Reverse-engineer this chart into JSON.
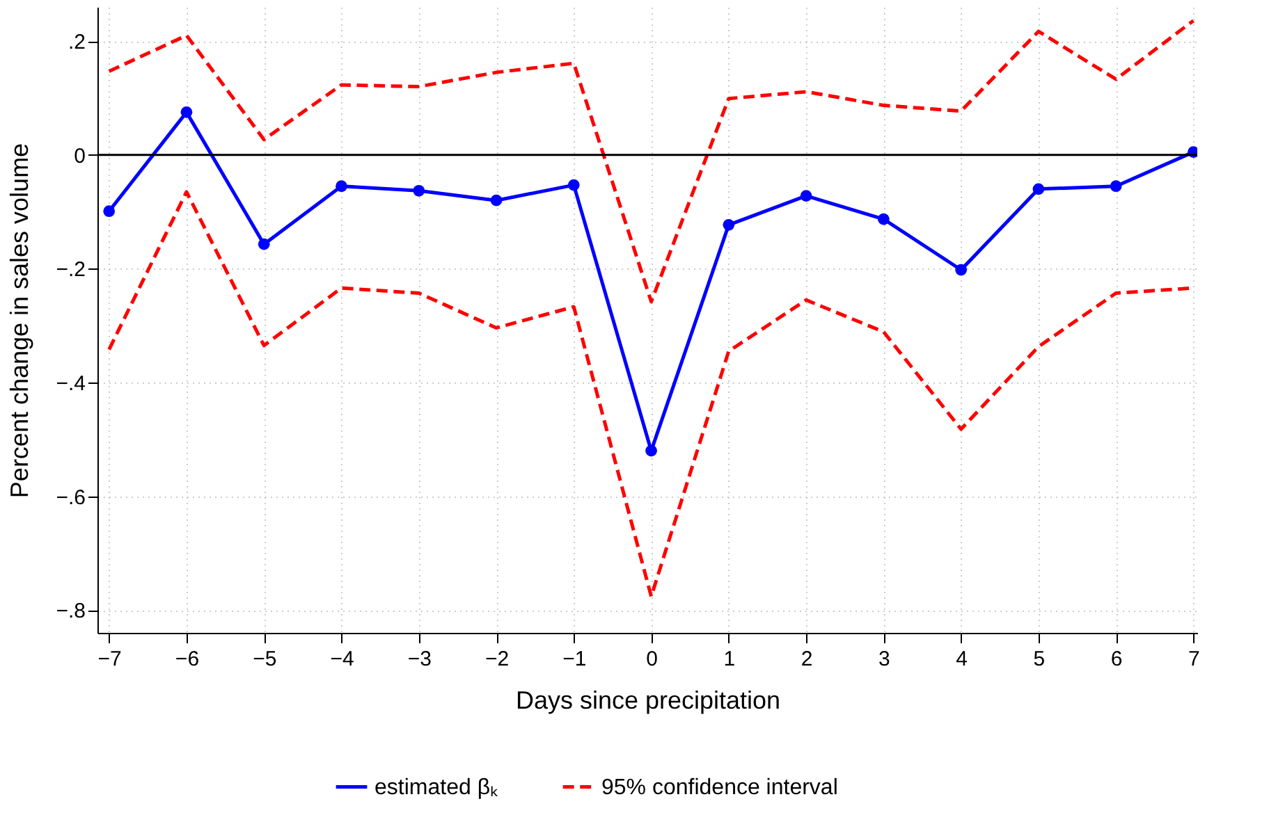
{
  "chart_data": {
    "type": "line",
    "xlabel": "Days since precipitation",
    "ylabel": "Percent change in sales volume",
    "x": [
      -7,
      -6,
      -5,
      -4,
      -3,
      -2,
      -1,
      0,
      1,
      2,
      3,
      4,
      5,
      6,
      7
    ],
    "series": [
      {
        "name": "estimated βₖ",
        "color": "#0000ff",
        "marker": "circle",
        "line_style": "solid",
        "values": [
          -0.099,
          0.075,
          -0.157,
          -0.055,
          -0.063,
          -0.08,
          -0.053,
          -0.52,
          -0.123,
          -0.072,
          -0.113,
          -0.202,
          -0.06,
          -0.055,
          0.005
        ]
      },
      {
        "name": "95% confidence interval",
        "color": "#ff0000",
        "marker": "none",
        "line_style": "dashed",
        "values": [
          0.147,
          0.21,
          0.027,
          0.123,
          0.12,
          0.145,
          0.161,
          -0.258,
          0.099,
          0.111,
          0.087,
          0.077,
          0.217,
          0.133,
          0.236
        ]
      },
      {
        "color": "#ff0000",
        "marker": "none",
        "line_style": "dashed",
        "values": [
          -0.342,
          -0.065,
          -0.335,
          -0.234,
          -0.243,
          -0.304,
          -0.267,
          -0.776,
          -0.345,
          -0.255,
          -0.311,
          -0.482,
          -0.337,
          -0.243,
          -0.234
        ]
      }
    ],
    "xlim": [
      -7.15,
      7.05
    ],
    "ylim": [
      -0.84,
      0.26
    ],
    "xticks": [
      {
        "value": -7,
        "label": "−7"
      },
      {
        "value": -6,
        "label": "−6"
      },
      {
        "value": -5,
        "label": "−5"
      },
      {
        "value": -4,
        "label": "−4"
      },
      {
        "value": -3,
        "label": "−3"
      },
      {
        "value": -2,
        "label": "−2"
      },
      {
        "value": -1,
        "label": "−1"
      },
      0,
      1,
      2,
      3,
      4,
      5,
      6,
      7
    ],
    "yticks": [
      {
        "value": -0.8,
        "label": "−.8"
      },
      {
        "value": -0.6,
        "label": "−.6"
      },
      {
        "value": -0.4,
        "label": "−.4"
      },
      {
        "value": -0.2,
        "label": "−.2"
      },
      0,
      {
        "value": 0.2,
        "label": ".2"
      }
    ],
    "ref_lines": [
      {
        "axis": "y",
        "value": 0,
        "color": "#000000"
      }
    ],
    "grid": true,
    "legend": "bottom"
  }
}
